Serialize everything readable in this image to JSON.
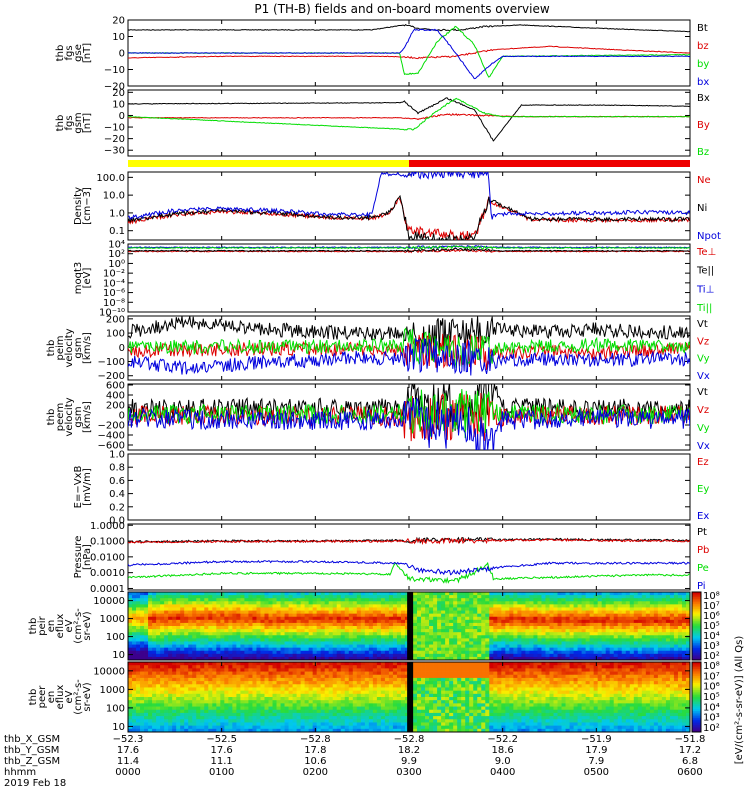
{
  "title": "P1 (TH-B) fields and on-board moments overview",
  "colors": {
    "black": "#000000",
    "red": "#dd0000",
    "green": "#00dd00",
    "blue": "#0000dd",
    "yellow": "#ffff00",
    "bar_red": "#ee0000"
  },
  "chart_data": [
    {
      "type": "line",
      "id": "fgs_gse",
      "ylabel": [
        "thb",
        "fgs",
        "gse",
        "[nT]"
      ],
      "yticks": [
        "20",
        "10",
        "0",
        "−10",
        "−20"
      ],
      "ylim": [
        -20,
        20
      ],
      "series": [
        {
          "name": "Bt",
          "color": "black",
          "x": [
            0,
            2.6,
            2.95,
            3.1,
            3.3,
            3.55,
            3.8,
            4.2,
            5,
            6
          ],
          "values": [
            14,
            14,
            17,
            15,
            14,
            14,
            16,
            17,
            15,
            13
          ]
        },
        {
          "name": "bz",
          "color": "red",
          "x": [
            0,
            1,
            2,
            2.8,
            3.1,
            3.5,
            3.9,
            4.5,
            5.2,
            6
          ],
          "values": [
            -3,
            -2,
            -2,
            -2,
            -3,
            -2,
            2,
            4,
            2,
            0
          ]
        },
        {
          "name": "by",
          "color": "green",
          "x": [
            0,
            2.9,
            2.95,
            3.1,
            3.3,
            3.5,
            3.7,
            3.85,
            4,
            6
          ],
          "values": [
            0,
            0,
            -13,
            -12,
            7,
            16,
            5,
            -15,
            -2,
            -1
          ]
        },
        {
          "name": "bx",
          "color": "blue",
          "x": [
            0,
            2.9,
            2.95,
            3.05,
            3.3,
            3.5,
            3.7,
            3.85,
            4,
            6
          ],
          "values": [
            0,
            0,
            3,
            14,
            14,
            0,
            -16,
            -8,
            -2,
            -2
          ]
        }
      ]
    },
    {
      "type": "line",
      "id": "fgs_gsm",
      "ylabel": [
        "thb",
        "fgs",
        "gsm",
        "[nT]"
      ],
      "yticks": [
        "20",
        "10",
        "0",
        "−10",
        "−20",
        "−30"
      ],
      "ylim": [
        -35,
        22
      ],
      "series": [
        {
          "name": "Bx",
          "color": "black",
          "x": [
            0,
            2.9,
            2.95,
            3.1,
            3.4,
            3.7,
            3.9,
            4.2,
            5,
            6
          ],
          "values": [
            10,
            11,
            12,
            2,
            15,
            5,
            -22,
            9,
            9,
            8
          ]
        },
        {
          "name": "By",
          "color": "red",
          "x": [
            0,
            2.9,
            3.1,
            3.4,
            3.8,
            4.2,
            5,
            6
          ],
          "values": [
            -2,
            -2,
            -3,
            1,
            0,
            -1,
            -1,
            -1
          ]
        },
        {
          "name": "Bz",
          "color": "green",
          "x": [
            0,
            2.95,
            3.05,
            3.3,
            3.5,
            3.8,
            4,
            6
          ],
          "values": [
            -1,
            -12,
            -12,
            4,
            15,
            2,
            -1,
            -1
          ]
        }
      ]
    },
    {
      "type": "bar",
      "id": "region_bar",
      "segments": [
        {
          "from": 0,
          "to": 3.0,
          "color": "yellow"
        },
        {
          "from": 3.0,
          "to": 6,
          "color": "bar_red"
        }
      ]
    },
    {
      "type": "line",
      "id": "density",
      "scale": "log",
      "ylabel": [
        "Density",
        "[cm−3]"
      ],
      "yticks": [
        "100.0",
        "10.0",
        "1.0",
        "0.1"
      ],
      "ylim": [
        0.03,
        200
      ],
      "series": [
        {
          "name": "Ne",
          "color": "red",
          "x": [
            0,
            0.5,
            1,
            1.6,
            2.2,
            2.6,
            2.8,
            2.9,
            3.0,
            3.5,
            3.7,
            3.85,
            4.3,
            5,
            5.5,
            6
          ],
          "values": [
            0.3,
            0.8,
            1.2,
            0.9,
            0.5,
            0.5,
            1,
            8,
            0.1,
            0.05,
            0.05,
            5,
            0.4,
            0.4,
            0.4,
            0.4
          ]
        },
        {
          "name": "Ni",
          "color": "black",
          "x": [
            0,
            0.5,
            1,
            1.6,
            2.2,
            2.6,
            2.8,
            2.9,
            3.0,
            3.5,
            3.7,
            3.85,
            4.3,
            5,
            5.5,
            6
          ],
          "values": [
            0.35,
            0.9,
            1.3,
            1.0,
            0.55,
            0.55,
            1.2,
            9,
            0.05,
            0.03,
            0.04,
            6,
            0.45,
            0.45,
            0.45,
            0.45
          ]
        },
        {
          "name": "Npot",
          "color": "blue",
          "x": [
            0,
            0.5,
            1,
            1.6,
            2.2,
            2.6,
            2.7,
            2.72,
            3.85,
            3.88,
            4.3,
            5,
            5.5,
            6
          ],
          "values": [
            0.5,
            1.4,
            1.8,
            1.3,
            0.8,
            0.8,
            150,
            150,
            150,
            0.8,
            0.9,
            1.0,
            1.1,
            1.0
          ]
        }
      ]
    },
    {
      "type": "line",
      "id": "temperature",
      "scale": "log",
      "ylabel": [
        "moqt3",
        "[eV]"
      ],
      "yticks": [
        "10⁴",
        "10²",
        "10⁰",
        "10⁻²",
        "10⁻⁴",
        "10⁻⁶",
        "10⁻⁸",
        "10⁻¹⁰"
      ],
      "ylim": [
        1e-10,
        10000.0
      ],
      "series": [
        {
          "name": "Te⊥",
          "color": "red",
          "x": [
            0,
            2,
            3,
            3.5,
            4,
            6
          ],
          "values": [
            300,
            300,
            300,
            500,
            300,
            300
          ]
        },
        {
          "name": "Te||",
          "color": "black",
          "x": [
            0,
            2,
            3,
            3.5,
            4,
            6
          ],
          "values": [
            400,
            400,
            400,
            800,
            400,
            400
          ]
        },
        {
          "name": "Ti⊥",
          "color": "blue",
          "x": [
            0,
            2,
            3,
            3.5,
            4,
            6
          ],
          "values": [
            2000,
            2000,
            2000,
            3000,
            2000,
            2000
          ]
        },
        {
          "name": "Ti||",
          "color": "green",
          "x": [
            0,
            2,
            3,
            3.5,
            4,
            6
          ],
          "values": [
            1500,
            1500,
            1500,
            2500,
            1500,
            1500
          ]
        }
      ]
    },
    {
      "type": "line",
      "id": "peim_velocity",
      "ylabel": [
        "thb",
        "peim",
        "velocity",
        "gsm",
        "[km/s]"
      ],
      "yticks": [
        "200",
        "100",
        "0",
        "−100",
        "−200"
      ],
      "ylim": [
        -230,
        220
      ],
      "series": [
        {
          "name": "Vt",
          "color": "black",
          "x": [
            0,
            0.3,
            0.6,
            1,
            1.5,
            2,
            2.5,
            2.9,
            3.0,
            3.5,
            3.9,
            4.3,
            5,
            5.5,
            6
          ],
          "values": [
            110,
            140,
            175,
            150,
            125,
            110,
            95,
            105,
            80,
            90,
            130,
            110,
            125,
            110,
            100
          ]
        },
        {
          "name": "Vz",
          "color": "red",
          "x": [
            0,
            1,
            2,
            2.9,
            3.0,
            3.5,
            3.9,
            4.5,
            5,
            6
          ],
          "values": [
            -20,
            -15,
            -10,
            -20,
            -20,
            -25,
            -40,
            -30,
            -40,
            -10
          ]
        },
        {
          "name": "Vy",
          "color": "green",
          "x": [
            0,
            1,
            2,
            2.9,
            3.0,
            3.5,
            3.9,
            4.5,
            5,
            6
          ],
          "values": [
            0,
            5,
            5,
            10,
            10,
            -40,
            -10,
            10,
            15,
            10
          ]
        },
        {
          "name": "Vx",
          "color": "blue",
          "x": [
            0,
            0.3,
            0.6,
            1,
            1.5,
            2,
            2.5,
            2.9,
            3.0,
            3.5,
            3.9,
            4.3,
            5,
            5.5,
            6
          ],
          "values": [
            -90,
            -120,
            -150,
            -130,
            -100,
            -90,
            -70,
            -80,
            -50,
            -60,
            -100,
            -80,
            -90,
            -85,
            -80
          ]
        }
      ]
    },
    {
      "type": "line",
      "id": "peem_velocity",
      "ylabel": [
        "thb",
        "peem",
        "velocity",
        "gsm",
        "[km/s]"
      ],
      "yticks": [
        "600",
        "400",
        "200",
        "0",
        "−200",
        "−400",
        "−600"
      ],
      "ylim": [
        -700,
        620
      ],
      "series": [
        {
          "name": "Vt",
          "color": "black",
          "x": [
            0,
            1,
            2,
            2.9,
            3.0,
            3.5,
            3.85,
            3.9,
            4.0,
            4.5,
            5,
            6
          ],
          "values": [
            120,
            130,
            140,
            130,
            200,
            150,
            500,
            550,
            150,
            140,
            130,
            120
          ]
        },
        {
          "name": "Vz",
          "color": "red",
          "x": [
            0,
            1,
            2,
            3,
            3.5,
            4,
            5,
            6
          ],
          "values": [
            -20,
            -15,
            -10,
            -30,
            -60,
            -20,
            -10,
            -10
          ]
        },
        {
          "name": "Vy",
          "color": "green",
          "x": [
            0,
            1,
            2,
            3,
            3.5,
            4,
            5,
            6
          ],
          "values": [
            10,
            15,
            10,
            20,
            30,
            20,
            15,
            10
          ]
        },
        {
          "name": "Vx",
          "color": "blue",
          "x": [
            0,
            1,
            2,
            2.9,
            3.0,
            3.5,
            3.85,
            3.9,
            4.0,
            4.5,
            5,
            6
          ],
          "values": [
            -80,
            -90,
            -100,
            -110,
            -150,
            -200,
            -500,
            -600,
            -100,
            -90,
            -80,
            -80
          ]
        }
      ]
    },
    {
      "type": "line",
      "id": "efield",
      "ylabel": [
        "E=−VxB",
        "[mV/m]"
      ],
      "yticks": [
        "1.0",
        "0.8",
        "0.6",
        "0.4",
        "0.2",
        "0.0"
      ],
      "ylim": [
        0,
        1
      ],
      "series": [
        {
          "name": "Ez",
          "color": "red",
          "x": [],
          "values": []
        },
        {
          "name": "Ey",
          "color": "green",
          "x": [],
          "values": []
        },
        {
          "name": "Ex",
          "color": "blue",
          "x": [],
          "values": []
        }
      ]
    },
    {
      "type": "line",
      "id": "pressure",
      "scale": "log",
      "ylabel": [
        "Pressure",
        "[nPa]"
      ],
      "yticks": [
        "1.0000",
        "0.1000",
        "0.0100",
        "0.0010",
        "0.0001"
      ],
      "ylim": [
        8e-05,
        1.2
      ],
      "series": [
        {
          "name": "Pt",
          "color": "black",
          "x": [
            0,
            1,
            2,
            3,
            4,
            4.5,
            5,
            6
          ],
          "values": [
            0.09,
            0.1,
            0.1,
            0.11,
            0.12,
            0.13,
            0.12,
            0.11
          ]
        },
        {
          "name": "Pb",
          "color": "red",
          "x": [
            0,
            1,
            2,
            3,
            4,
            4.5,
            5,
            6
          ],
          "values": [
            0.085,
            0.095,
            0.095,
            0.1,
            0.11,
            0.12,
            0.11,
            0.1
          ]
        },
        {
          "name": "Pe",
          "color": "green",
          "x": [
            0,
            1,
            2,
            2.8,
            2.85,
            3.0,
            3.5,
            3.85,
            3.9,
            4.5,
            5,
            5.5,
            6
          ],
          "values": [
            0.0005,
            0.0009,
            0.0009,
            0.0008,
            0.004,
            0.0004,
            0.0003,
            0.003,
            0.0004,
            0.0005,
            0.0006,
            0.0007,
            0.0007
          ]
        },
        {
          "name": "Pi",
          "color": "blue",
          "x": [
            0,
            1,
            2,
            2.9,
            3.1,
            3.5,
            3.9,
            4.5,
            5,
            6
          ],
          "values": [
            0.003,
            0.005,
            0.005,
            0.004,
            0.0015,
            0.001,
            0.002,
            0.004,
            0.004,
            0.004
          ]
        }
      ]
    },
    {
      "type": "heatmap",
      "id": "peir",
      "ylabel": [
        "thb",
        "peir",
        "en",
        "eflux",
        "eV",
        "(cm²-s-",
        "sr-eV)"
      ],
      "yticks": [
        "10000",
        "1000",
        "100",
        "10"
      ],
      "ylim": [
        5,
        30000
      ],
      "scale": "log"
    },
    {
      "type": "heatmap",
      "id": "peer",
      "ylabel": [
        "thb",
        "peer",
        "en",
        "eflux",
        "eV",
        "(cm²-s-",
        "sr-eV)"
      ],
      "yticks": [
        "10000",
        "1000",
        "100",
        "10"
      ],
      "ylim": [
        5,
        30000
      ],
      "scale": "log"
    }
  ],
  "colorbars": [
    {
      "id": "cb_peir",
      "ticks": [
        "10⁸",
        "10⁷",
        "10⁶",
        "10⁵",
        "10⁴",
        "10³",
        "10²"
      ]
    },
    {
      "id": "cb_peer",
      "ticks": [
        "10⁸",
        "10⁷",
        "10⁶",
        "10⁵",
        "10⁴",
        "10³",
        "10²"
      ]
    }
  ],
  "colorbar_label": "[eV/(cm²-s-sr-eV)] (All Qs)",
  "footer": {
    "row_labels": [
      "thb_X_GSM",
      "thb_Y_GSM",
      "thb_Z_GSM",
      "hhmm",
      "2019 Feb 18"
    ],
    "columns": [
      [
        "−52.3",
        "17.6",
        "11.4",
        "0000"
      ],
      [
        "−52.5",
        "17.6",
        "11.1",
        "0100"
      ],
      [
        "−52.8",
        "17.8",
        "10.6",
        "0200"
      ],
      [
        "−52.8",
        "18.2",
        "9.9",
        "0300"
      ],
      [
        "−52.2",
        "18.6",
        "9.0",
        "0400"
      ],
      [
        "−51.9",
        "17.9",
        "7.9",
        "0500"
      ],
      [
        "−51.8",
        "17.2",
        "6.8",
        "0600"
      ]
    ]
  }
}
